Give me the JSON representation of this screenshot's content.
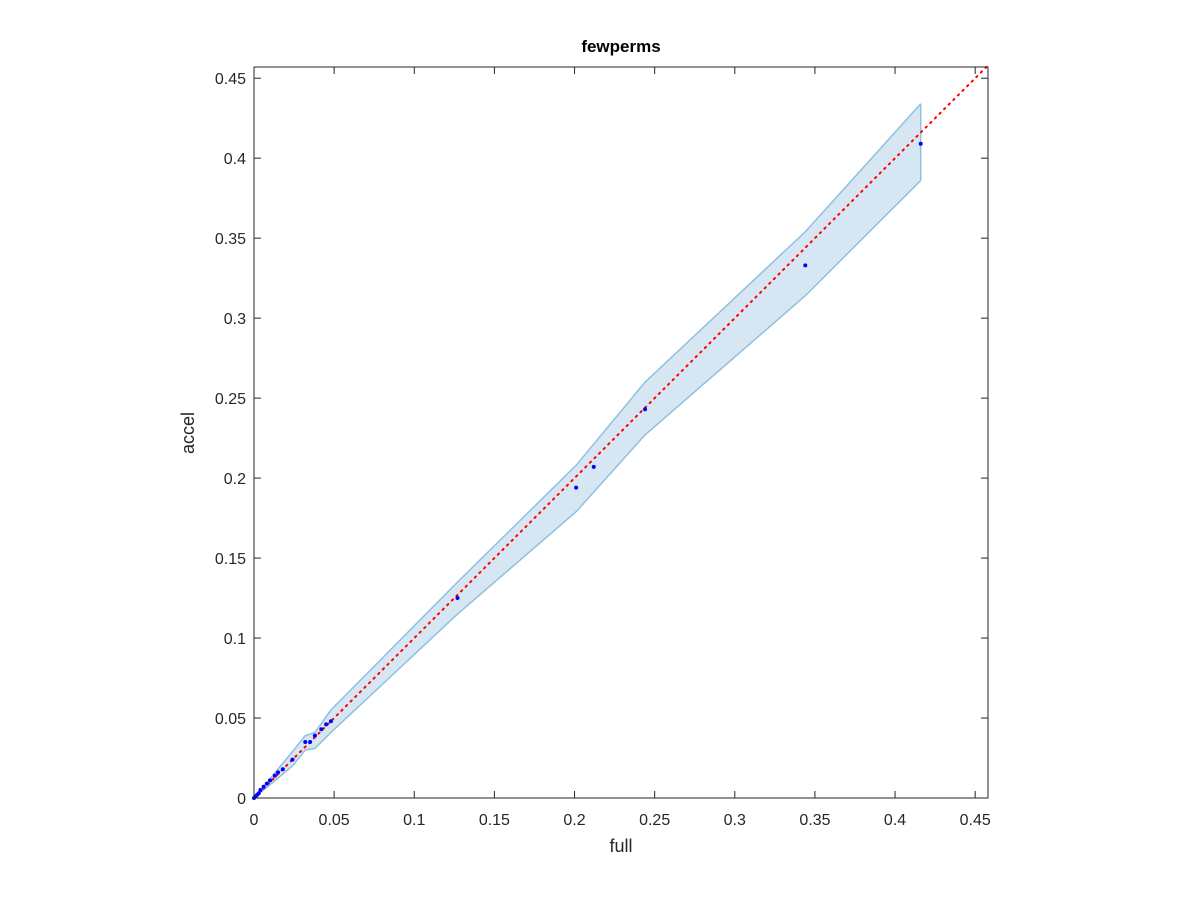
{
  "chart_data": {
    "type": "scatter",
    "title": "fewperms",
    "x_label": "full",
    "y_label": "accel",
    "xlim": [
      0,
      0.458
    ],
    "ylim": [
      0,
      0.457
    ],
    "xticks": [
      0,
      0.05,
      0.1,
      0.15,
      0.2,
      0.25,
      0.3,
      0.35,
      0.4,
      0.45
    ],
    "yticks": [
      0,
      0.05,
      0.1,
      0.15,
      0.2,
      0.25,
      0.3,
      0.35,
      0.4,
      0.45
    ],
    "points": {
      "color": "#0000ff",
      "x": [
        0,
        0.001,
        0.002,
        0.003,
        0.004,
        0.006,
        0.008,
        0.01,
        0.013,
        0.015,
        0.018,
        0.024,
        0.032,
        0.035,
        0.038,
        0.042,
        0.045,
        0.048,
        0.127,
        0.201,
        0.212,
        0.244,
        0.344,
        0.416
      ],
      "y": [
        0,
        0.001,
        0.002,
        0.003,
        0.005,
        0.007,
        0.009,
        0.011,
        0.014,
        0.016,
        0.018,
        0.024,
        0.035,
        0.035,
        0.039,
        0.043,
        0.046,
        0.048,
        0.125,
        0.194,
        0.207,
        0.243,
        0.333,
        0.409
      ]
    },
    "band": {
      "color": "#d6e7f3",
      "edge_color": "#8fc0df",
      "x": [
        0,
        0.024,
        0.032,
        0.038,
        0.048,
        0.127,
        0.201,
        0.244,
        0.344,
        0.416
      ],
      "upper": [
        0,
        0.029,
        0.039,
        0.041,
        0.055,
        0.135,
        0.208,
        0.26,
        0.354,
        0.434
      ],
      "lower": [
        0,
        0.02,
        0.03,
        0.031,
        0.041,
        0.115,
        0.179,
        0.227,
        0.314,
        0.386
      ]
    },
    "reference_line": {
      "color": "#ff0000",
      "x": [
        0,
        0.458
      ],
      "y": [
        0,
        0.458
      ]
    }
  }
}
